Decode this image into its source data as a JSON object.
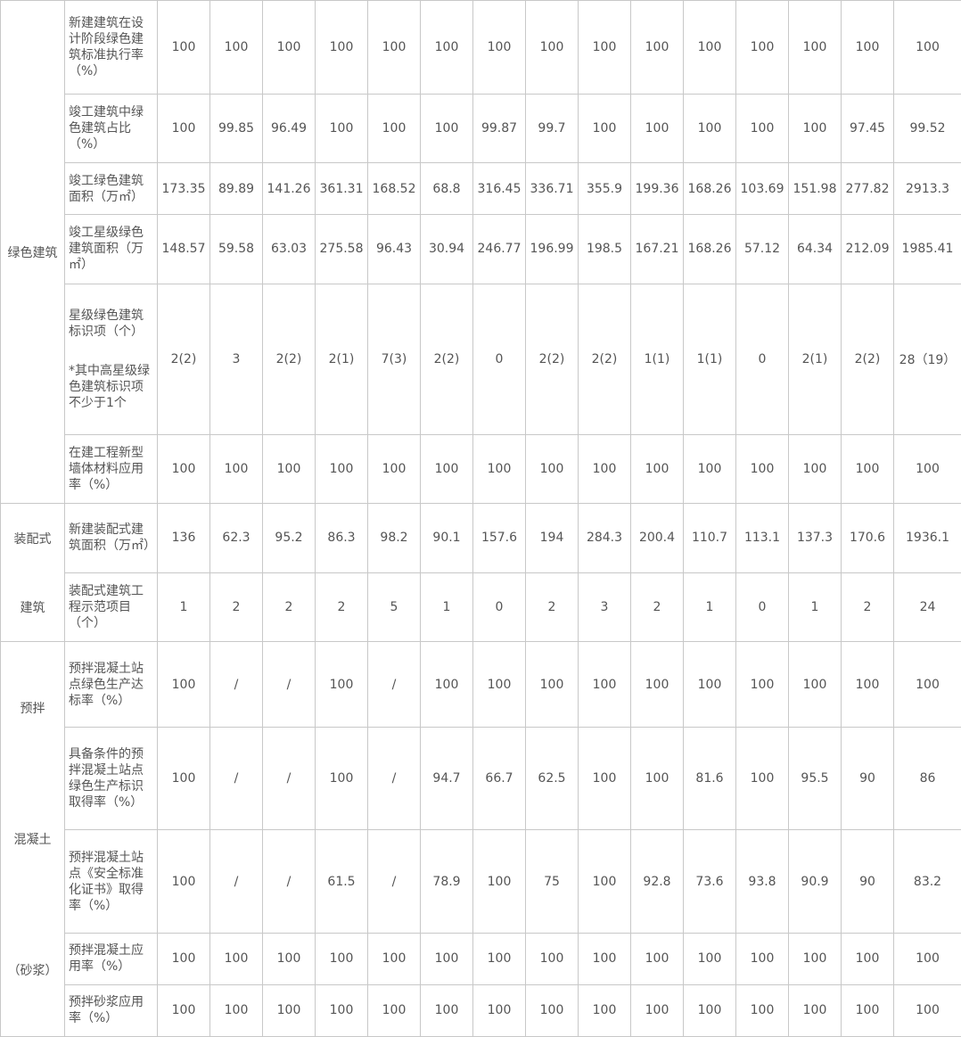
{
  "table": {
    "groups": [
      {
        "lines": [
          "绿色建筑"
        ],
        "rows": [
          {
            "label": "新建建筑在设计阶段绿色建筑标准执行率（%）",
            "cells": [
              "100",
              "100",
              "100",
              "100",
              "100",
              "100",
              "100",
              "100",
              "100",
              "100",
              "100",
              "100",
              "100",
              "100",
              "100"
            ]
          },
          {
            "label": "竣工建筑中绿色建筑占比（%）",
            "cells": [
              "100",
              "99.85",
              "96.49",
              "100",
              "100",
              "100",
              "99.87",
              "99.7",
              "100",
              "100",
              "100",
              "100",
              "100",
              "97.45",
              "99.52"
            ]
          },
          {
            "label": "竣工绿色建筑面积（万㎡）",
            "cells": [
              "173.35",
              "89.89",
              "141.26",
              "361.31",
              "168.52",
              "68.8",
              "316.45",
              "336.71",
              "355.9",
              "199.36",
              "168.26",
              "103.69",
              "151.98",
              "277.82",
              "2913.3"
            ]
          },
          {
            "label": "竣工星级绿色建筑面积（万㎡）",
            "cells": [
              "148.57",
              "59.58",
              "63.03",
              "275.58",
              "96.43",
              "30.94",
              "246.77",
              "196.99",
              "198.5",
              "167.21",
              "168.26",
              "57.12",
              "64.34",
              "212.09",
              "1985.41"
            ]
          },
          {
            "label": "星级绿色建筑标识项（个）",
            "note": "*其中高星级绿色建筑标识项不少于1个",
            "cells": [
              "2(2)",
              "3",
              "2(2)",
              "2(1)",
              "7(3)",
              "2(2)",
              "0",
              "2(2)",
              "2(2)",
              "1(1)",
              "1(1)",
              "0",
              "2(1)",
              "2(2)",
              "28（19）"
            ]
          },
          {
            "label": "在建工程新型墙体材料应用率（%）",
            "cells": [
              "100",
              "100",
              "100",
              "100",
              "100",
              "100",
              "100",
              "100",
              "100",
              "100",
              "100",
              "100",
              "100",
              "100",
              "100"
            ]
          }
        ]
      },
      {
        "lines": [
          "装配式",
          "建筑"
        ],
        "rows": [
          {
            "label": "新建装配式建筑面积（万㎡）",
            "cells": [
              "136",
              "62.3",
              "95.2",
              "86.3",
              "98.2",
              "90.1",
              "157.6",
              "194",
              "284.3",
              "200.4",
              "110.7",
              "113.1",
              "137.3",
              "170.6",
              "1936.1"
            ]
          },
          {
            "label": "装配式建筑工程示范项目（个）",
            "cells": [
              "1",
              "2",
              "2",
              "2",
              "5",
              "1",
              "0",
              "2",
              "3",
              "2",
              "1",
              "0",
              "1",
              "2",
              "24"
            ]
          }
        ]
      },
      {
        "lines": [
          "预拌",
          "混凝土",
          "（砂浆）"
        ],
        "rows": [
          {
            "label": "预拌混凝土站点绿色生产达标率（%）",
            "cells": [
              "100",
              "/",
              "/",
              "100",
              "/",
              "100",
              "100",
              "100",
              "100",
              "100",
              "100",
              "100",
              "100",
              "100",
              "100"
            ]
          },
          {
            "label": "具备条件的预拌混凝土站点绿色生产标识取得率（%）",
            "cells": [
              "100",
              "/",
              "/",
              "100",
              "/",
              "94.7",
              "66.7",
              "62.5",
              "100",
              "100",
              "81.6",
              "100",
              "95.5",
              "90",
              "86"
            ]
          },
          {
            "label": "预拌混凝土站点《安全标准化证书》取得率（%）",
            "cells": [
              "100",
              "/",
              "/",
              "61.5",
              "/",
              "78.9",
              "100",
              "75",
              "100",
              "92.8",
              "73.6",
              "93.8",
              "90.9",
              "90",
              "83.2"
            ]
          },
          {
            "label": "预拌混凝土应用率（%）",
            "cells": [
              "100",
              "100",
              "100",
              "100",
              "100",
              "100",
              "100",
              "100",
              "100",
              "100",
              "100",
              "100",
              "100",
              "100",
              "100"
            ]
          },
          {
            "label": "预拌砂浆应用率（%）",
            "cells": [
              "100",
              "100",
              "100",
              "100",
              "100",
              "100",
              "100",
              "100",
              "100",
              "100",
              "100",
              "100",
              "100",
              "100",
              "100"
            ]
          }
        ]
      }
    ]
  }
}
